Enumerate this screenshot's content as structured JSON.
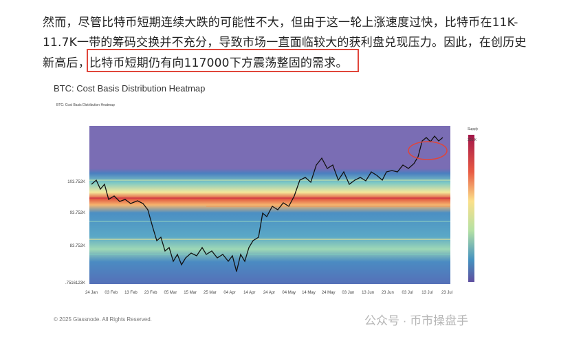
{
  "article": {
    "lines": [
      "然而，尽管比特币短期连续大跌的可能性不大，但由于这一轮上涨速度过快，比特币在11K-",
      "11.7K一带的筹码交换并不充分，导致市场一直面临较大的获利盘兑现压力。因此，在创历史",
      "新高后，"
    ],
    "highlight": "比特币短期仍有向117000下方震荡整固的需求。"
  },
  "figure": {
    "title": "BTC: Cost Basis Distribution Heatmap",
    "legend": "BTC: Cost Basis Distribution Heatmap",
    "y_labels": [
      "103.752K",
      "93.752K",
      "83.752K",
      ".7516123K"
    ],
    "x_labels": [
      "24 Jan",
      "03 Feb",
      "13 Feb",
      "23 Feb",
      "05 Mar",
      "15 Mar",
      "25 Mar",
      "04 Apr",
      "14 Apr",
      "24 Apr",
      "04 May",
      "14 May",
      "24 May",
      "03 Jun",
      "13 Jun",
      "23 Jun",
      "03 Jul",
      "13 Jul",
      "23 Jul"
    ],
    "colorbar_title": "Supply",
    "colorbar_max": "201 K",
    "copyright": "© 2025 Glassnode. All Rights Reserved."
  },
  "watermark": "公众号 · 币市操盘手"
}
